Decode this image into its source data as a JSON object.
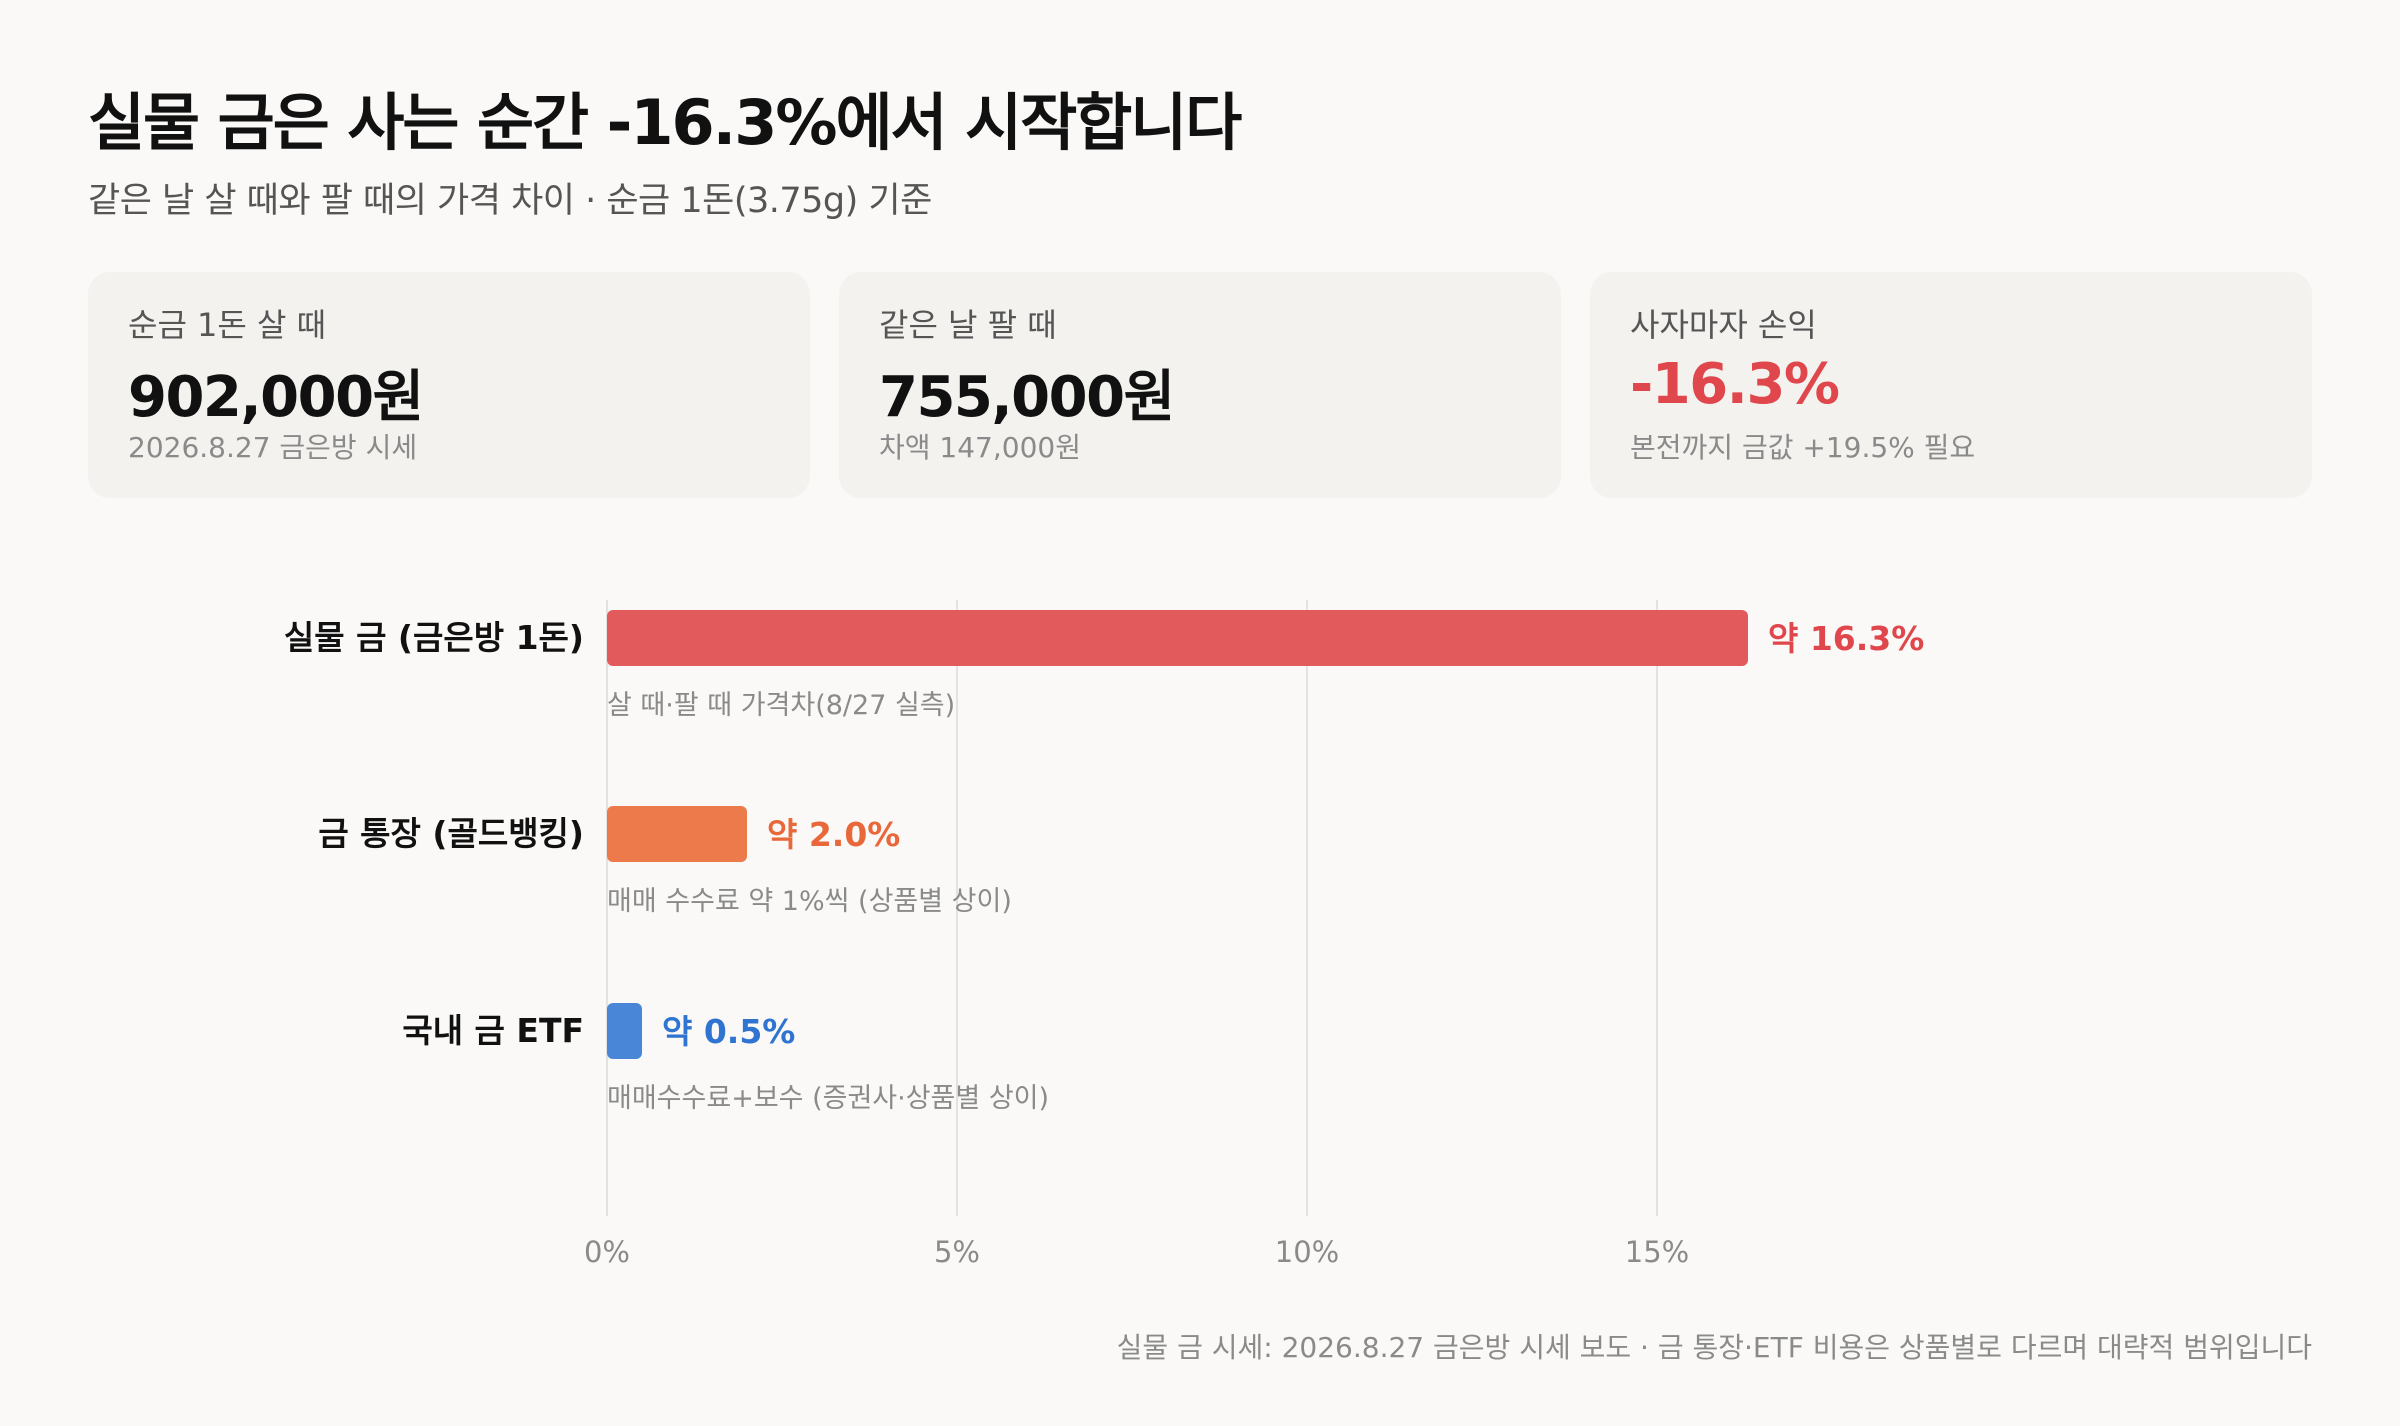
{
  "header": {
    "title": "실물 금은 사는 순간 -16.3%에서 시작합니다",
    "subtitle": "같은 날 살 때와 팔 때의 가격 차이 · 순금 1돈(3.75g) 기준"
  },
  "cards": [
    {
      "label": "순금 1돈 살 때",
      "value": "902,000원",
      "note": "2026.8.27 금은방 시세"
    },
    {
      "label": "같은 날 팔 때",
      "value": "755,000원",
      "note": "차액 147,000원"
    },
    {
      "label": "사자마자 손익",
      "value": "-16.3%",
      "note": "본전까지 금값 +19.5% 필요"
    }
  ],
  "chart_data": {
    "type": "bar",
    "orientation": "horizontal",
    "categories": [
      "실물 금 (금은방 1돈)",
      "금 통장 (골드뱅킹)",
      "국내 금 ETF"
    ],
    "values": [
      16.3,
      2.0,
      0.5
    ],
    "value_labels": [
      "약 16.3%",
      "약 2.0%",
      "약 0.5%"
    ],
    "sublabels": [
      "살 때·팔 때 가격차(8/27 실측)",
      "매매 수수료 약 1%씩 (상품별 상이)",
      "매매수수료+보수 (증권사·상품별 상이)"
    ],
    "colors": [
      "#e35a5c",
      "#ec7a4a",
      "#4a86d8"
    ],
    "label_colors": [
      "#e0474c",
      "#e8683a",
      "#2f74d0"
    ],
    "xticks": [
      0,
      5,
      10,
      15
    ],
    "xtick_labels": [
      "0%",
      "5%",
      "10%",
      "15%"
    ],
    "xlim": [
      0,
      25
    ],
    "grid": true
  },
  "footer": "실물 금 시세: 2026.8.27 금은방 시세 보도 · 금 통장·ETF 비용은 상품별로 다르며 대략적 범위입니다"
}
